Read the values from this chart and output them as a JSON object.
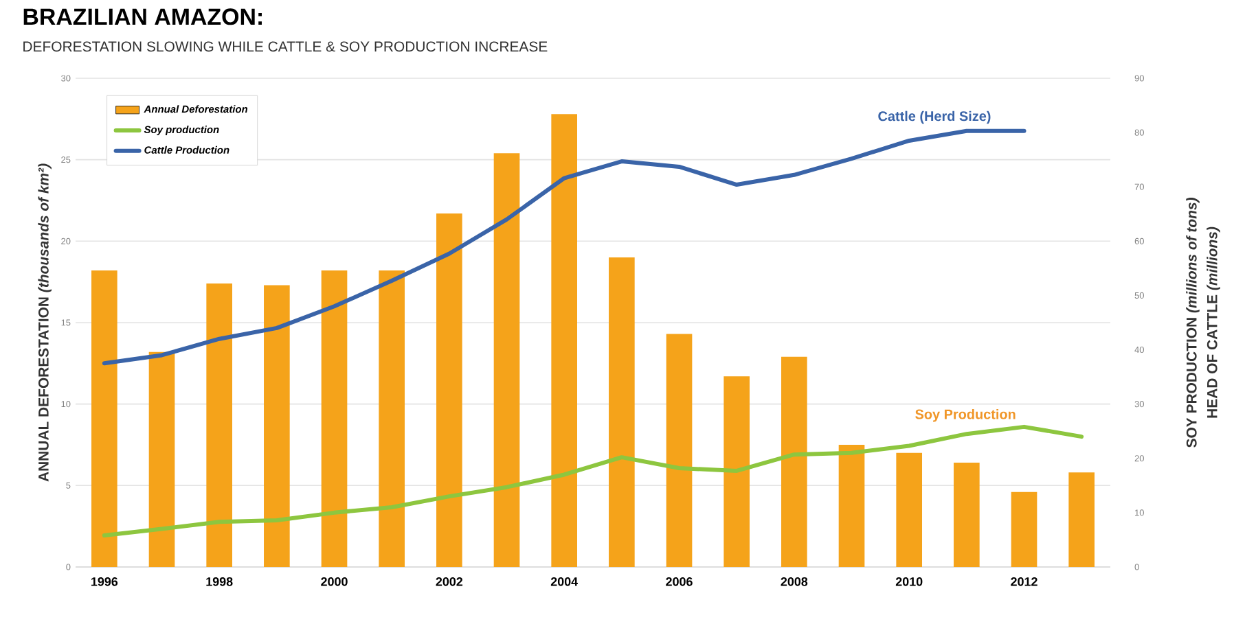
{
  "chart_data": {
    "type": "bar",
    "title": "BRAZILIAN AMAZON:",
    "subtitle": "DEFORESTATION SLOWING WHILE CATTLE & SOY PRODUCTION INCREASE",
    "ylabel": "ANNUAL DEFORESTATION  *(thousands of km²)*",
    "y2label": "SOY PRODUCTION  *(millions of tons)*",
    "x": [
      1996,
      1997,
      1998,
      1999,
      2000,
      2001,
      2002,
      2003,
      2004,
      2005,
      2006,
      2007,
      2008,
      2009,
      2010,
      2011,
      2012,
      2013
    ],
    "series": [
      {
        "name": "Annual Deforestation",
        "color": "#f5a31a",
        "values": [
          18.2,
          13.2,
          17.4,
          17.3,
          18.2,
          18.2,
          21.7,
          25.4,
          27.8,
          19.0,
          14.3,
          11.7,
          12.9,
          7.5,
          7.0,
          6.4,
          4.6,
          5.8
        ]
      },
      {
        "name": "Soy production",
        "type": "line",
        "axis": "y2",
        "color": "#8dc63f",
        "values": [
          5.8,
          7,
          8.3,
          8.6,
          10,
          11,
          13,
          14.7,
          17,
          20.2,
          18.2,
          17.7,
          20.7,
          21,
          22.3,
          24.5,
          25.8,
          24
        ]
      },
      {
        "name": "Cattle Production",
        "type": "line",
        "axis": "y2",
        "color": "#3a64a8",
        "values": [
          37.5,
          39,
          42,
          44,
          48,
          52.7,
          57.7,
          64,
          71.6,
          74.7,
          73.7,
          70.4,
          72.2,
          75.2,
          78.5,
          80.3,
          80.3,
          null
        ]
      }
    ],
    "xlim": [
      1995.5,
      2013.5
    ],
    "xticks": [
      1996,
      1998,
      2000,
      2002,
      2004,
      2006,
      2008,
      2010,
      2012
    ],
    "ylim": [
      0,
      30
    ],
    "yticks": [
      0,
      5,
      10,
      15,
      20,
      25,
      30
    ],
    "y2lim": [
      0,
      90
    ],
    "y2ticks": [
      0,
      10,
      20,
      30,
      40,
      50,
      60,
      70,
      80,
      90
    ],
    "annotations": [
      "Cattle (Herd Size)",
      "Soy Production",
      "HEAD OF CATTLE  *(millions)*"
    ],
    "grid": "y",
    "legend": "top left",
    "marker": "none"
  }
}
